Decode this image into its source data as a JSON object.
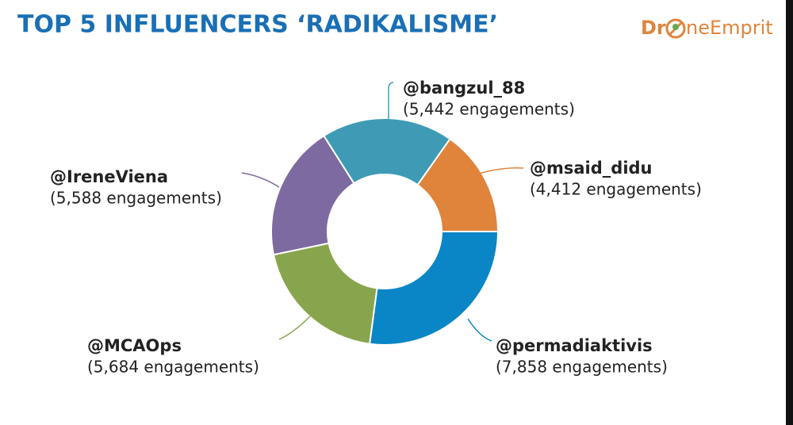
{
  "chart_data": {
    "type": "donut",
    "title": "TOP 5 INFLUENCERS ‘RADIKALISME’",
    "logo": {
      "left": "Dr",
      "right": "neEmprit"
    },
    "categories": [
      "@msaid_didu",
      "@permadiaktivis",
      "@MCAOps",
      "@IreneViena",
      "@bangzul_88"
    ],
    "values": [
      4412,
      7858,
      5684,
      5588,
      5442
    ],
    "value_labels": [
      "(4,412 engagements)",
      "(7,858 engagements)",
      "(5,684 engagements)",
      "(5,588 engagements)",
      "(5,442 engagements)"
    ],
    "colors": [
      "#e0843c",
      "#0a86c6",
      "#88a54d",
      "#7d6aa0",
      "#3f9bb5"
    ]
  }
}
